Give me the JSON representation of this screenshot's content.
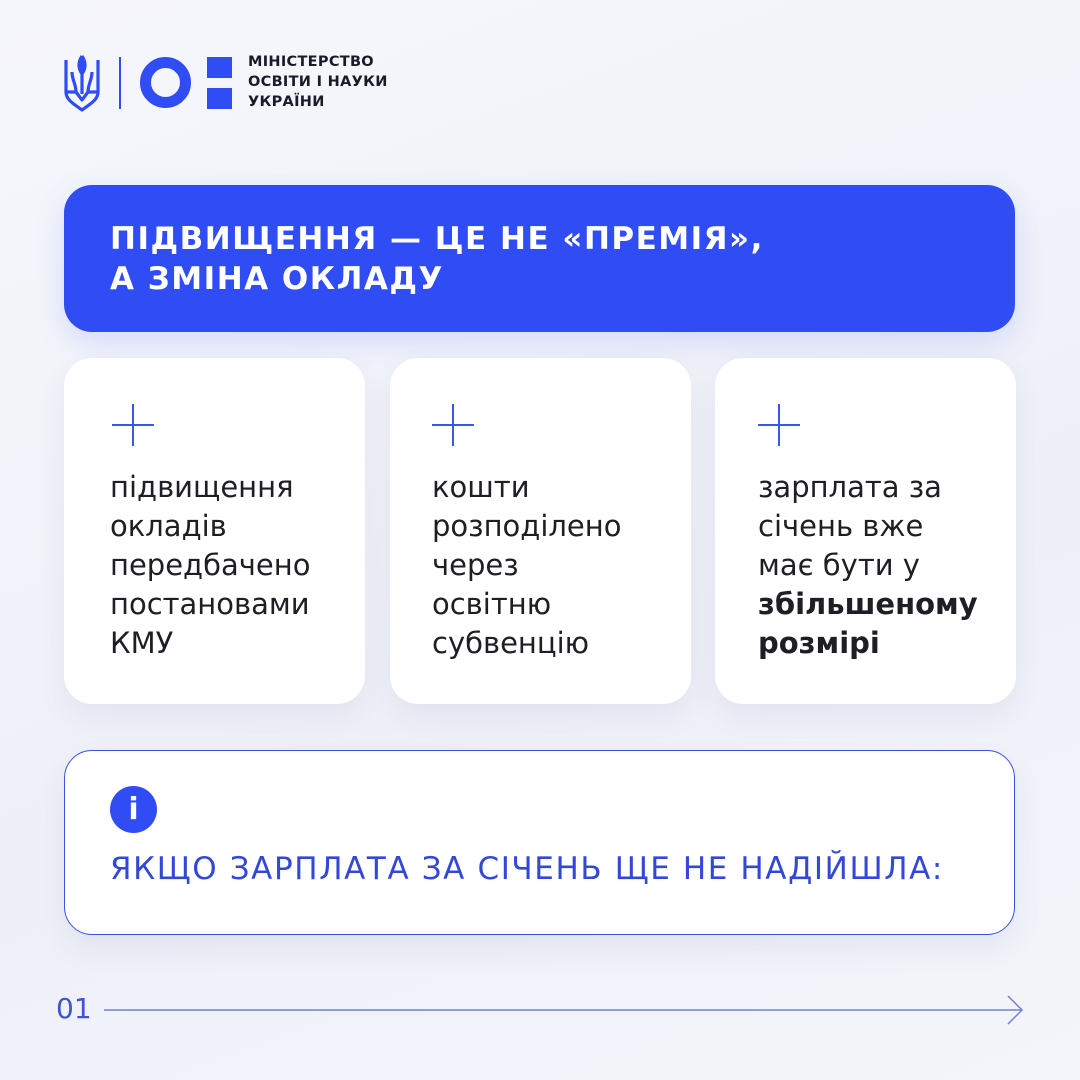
{
  "header": {
    "logo_lines": [
      "МІНІСТЕРСТВО",
      "ОСВІТИ І НАУКИ",
      "УКРАЇНИ"
    ],
    "emblem_icon": "trident-icon"
  },
  "banner": {
    "title_line1": "ПІДВИЩЕННЯ — ЦЕ НЕ «ПРЕМІЯ»,",
    "title_line2": "А ЗМІНА ОКЛАДУ"
  },
  "cards": [
    {
      "icon": "plus-icon",
      "lines": [
        "підвищення",
        "окладів",
        "передбачено",
        "постановами",
        "КМУ"
      ]
    },
    {
      "icon": "plus-icon",
      "lines": [
        "кошти",
        "розподілено",
        "через",
        "освітню",
        "субвенцію"
      ]
    },
    {
      "icon": "plus-icon",
      "lines": [
        "зарплата за",
        "січень вже",
        "має бути у"
      ],
      "bold_lines": [
        "збільшеному",
        "розмірі"
      ]
    }
  ],
  "info": {
    "icon_label": "i",
    "text": "ЯКЩО ЗАРПЛАТА ЗА СІЧЕНЬ ЩЕ НЕ НАДІЙШЛА:"
  },
  "footer": {
    "page_number": "01",
    "arrow_icon": "arrow-right-icon"
  },
  "colors": {
    "accent": "#2f4cf5",
    "text": "#1e1e24",
    "background": "#f4f5fb"
  }
}
